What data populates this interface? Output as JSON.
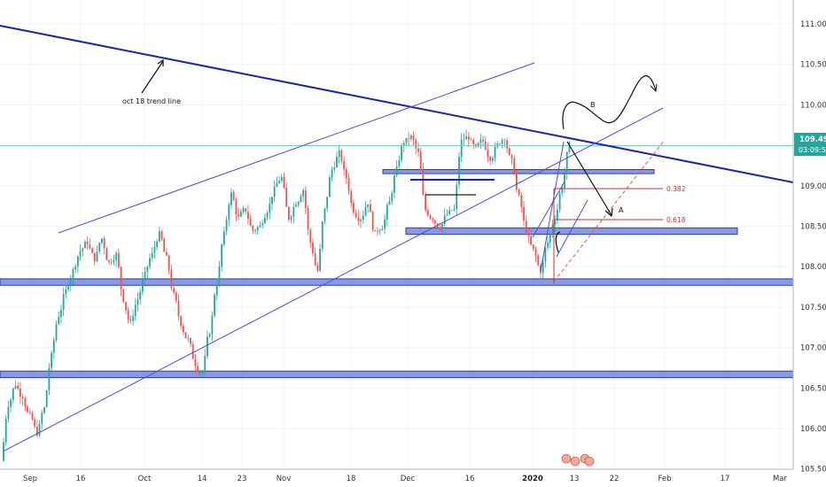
{
  "colors": {
    "up": "#26a69a",
    "down": "#ef5350",
    "trendline": "#1a23b8",
    "channel": "#4650d8",
    "zone_fill": "#8b9ae0",
    "zone_stroke": "#2b3ab0",
    "hline": "#222222",
    "fib": "#c0392b",
    "price_line": "#7fcfc4",
    "price_tag": "#26a69a",
    "grid": "#f0f3fa",
    "axis": "#b2b5be"
  },
  "chart_data": {
    "type": "candlestick",
    "symbol_timeframe": "",
    "ylim": [
      105.25,
      111.25
    ],
    "y_ticks": [
      "111.000",
      "110.500",
      "110.000",
      "109.500",
      "109.000",
      "108.500",
      "108.000",
      "107.500",
      "107.000",
      "106.500",
      "106.000",
      "105.500"
    ],
    "x_ticks": [
      "Sep",
      "16",
      "Oct",
      "14",
      "23",
      "Nov",
      "18",
      "Dec",
      "16",
      "2020",
      "13",
      "22",
      "Feb",
      "17",
      "Mar"
    ],
    "bold_x_ticks": [
      "2020"
    ],
    "current_price": "109.495",
    "countdown": "03:09:57",
    "close_series": [
      106.3,
      106.55,
      106.4,
      106.15,
      105.95,
      106.25,
      106.9,
      107.4,
      107.7,
      107.95,
      108.2,
      108.3,
      108.1,
      108.35,
      108.05,
      108.15,
      107.6,
      107.3,
      107.6,
      107.9,
      108.15,
      108.4,
      108.1,
      107.65,
      107.3,
      107.1,
      106.8,
      106.7,
      107.2,
      107.8,
      108.4,
      108.9,
      108.6,
      108.7,
      108.45,
      108.5,
      108.7,
      108.95,
      109.1,
      108.6,
      108.8,
      108.95,
      108.3,
      107.95,
      108.7,
      109.2,
      109.4,
      109.1,
      108.7,
      108.6,
      108.8,
      108.4,
      108.5,
      108.8,
      109.2,
      109.55,
      109.6,
      109.4,
      108.7,
      108.6,
      108.5,
      108.65,
      108.7,
      109.55,
      109.6,
      109.45,
      109.55,
      109.35,
      109.5,
      109.6,
      109.3,
      108.85,
      108.45,
      108.2,
      107.95,
      108.3,
      108.6,
      109.0,
      109.5
    ],
    "lines": [
      {
        "label": "oct 18 trend line",
        "kind": "trend",
        "from": [
          "Aug 20",
          111.0
        ],
        "to": [
          "Mar 1",
          108.95
        ]
      },
      {
        "kind": "channel",
        "from": [
          "Sep 7",
          108.35
        ],
        "to": [
          "Jan 10",
          110.5
        ]
      },
      {
        "kind": "channel",
        "from": [
          "Aug 28",
          105.3
        ],
        "to": [
          "Jan 30",
          109.8
        ]
      }
    ],
    "zones": [
      {
        "name": "support",
        "y": [
          107.77,
          107.85
        ],
        "x_from": "left",
        "x_to": "right"
      },
      {
        "name": "support",
        "y": [
          106.63,
          106.71
        ],
        "x_from": "left",
        "x_to": "right"
      },
      {
        "name": "resistance",
        "y": [
          109.15,
          109.2
        ],
        "x_from": "Nov 22",
        "x_to": "Jan 26"
      },
      {
        "name": "support",
        "y": [
          108.4,
          108.48
        ],
        "x_from": "Nov 25",
        "x_to": "Feb 6"
      }
    ],
    "fib_levels": [
      {
        "label": "0.382",
        "price": 108.86
      },
      {
        "label": "0.618",
        "price": 108.46
      }
    ],
    "annotations": [
      "oct 18 trend line",
      "A",
      "B"
    ]
  }
}
